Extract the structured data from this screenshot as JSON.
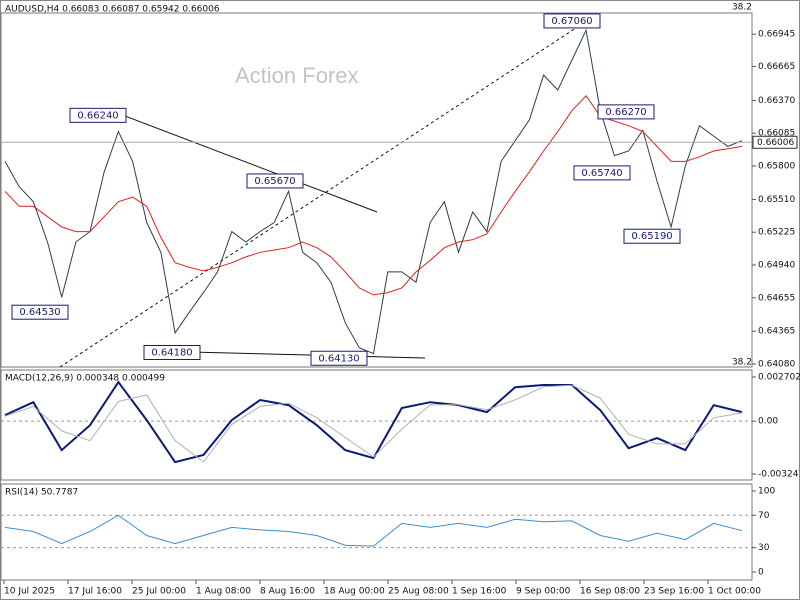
{
  "chart_data": [
    {
      "type": "line",
      "title": "AUDUSD,H4  0.66083 0.66087 0.65942 0.66006",
      "watermark": "Action Forex",
      "series": [
        {
          "color": "#2a3f4f",
          "values": [
            0.6584,
            0.6562,
            0.6549,
            0.6514,
            0.6466,
            0.6514,
            0.6523,
            0.6575,
            0.661,
            0.6584,
            0.6531,
            0.6505,
            0.6435,
            0.6453,
            0.647,
            0.6488,
            0.6523,
            0.6514,
            0.6523,
            0.6531,
            0.6558,
            0.6505,
            0.6496,
            0.6479,
            0.6444,
            0.6422,
            0.6417,
            0.6488,
            0.6488,
            0.6479,
            0.6531,
            0.6549,
            0.6505,
            0.654,
            0.6523,
            0.6584,
            0.6602,
            0.662,
            0.6659,
            0.6646,
            0.6672,
            0.6698,
            0.6628,
            0.6589,
            0.6593,
            0.6611,
            0.6567,
            0.6527,
            0.658,
            0.6615,
            0.6606,
            0.6597,
            0.6602
          ]
        },
        {
          "color": "#e02020",
          "values": [
            0.6558,
            0.6545,
            0.6545,
            0.6536,
            0.6527,
            0.6523,
            0.6523,
            0.6536,
            0.6549,
            0.6553,
            0.6545,
            0.6518,
            0.6496,
            0.6492,
            0.6489,
            0.6492,
            0.6496,
            0.6501,
            0.6505,
            0.6507,
            0.6509,
            0.6514,
            0.6509,
            0.6501,
            0.6488,
            0.6474,
            0.6468,
            0.647,
            0.6474,
            0.6488,
            0.6498,
            0.6509,
            0.6514,
            0.6516,
            0.6521,
            0.654,
            0.6558,
            0.6575,
            0.6593,
            0.661,
            0.6628,
            0.6641,
            0.6623,
            0.6619,
            0.6615,
            0.661,
            0.6597,
            0.6584,
            0.6584,
            0.6588,
            0.6593,
            0.6595,
            0.6597
          ]
        }
      ],
      "ylim": [
        0.64054,
        0.67129
      ],
      "yticks": [
        0.66945,
        0.66665,
        {
          "value": 0.6637,
          "label": "0.66370"
        },
        0.66085,
        {
          "value": 0.658,
          "label": "0.65800"
        },
        {
          "value": 0.6551,
          "label": "0.65510"
        },
        0.65225,
        {
          "value": 0.6494,
          "label": "0.64940"
        },
        0.64655,
        0.64365,
        {
          "value": 0.6408,
          "label": "0.64080"
        }
      ],
      "last_price": 0.66006,
      "annotations": [
        {
          "value": 0.6624,
          "label": "0.66240"
        },
        {
          "value": 0.6453,
          "label": "0.64530"
        },
        {
          "value": 0.6418,
          "label": "0.64180"
        },
        {
          "value": 0.6567,
          "label": "0.65670"
        },
        {
          "value": 0.6413,
          "label": "0.64130"
        },
        {
          "value": 0.6706,
          "label": "0.67060"
        },
        {
          "value": 0.6627,
          "label": "0.66270"
        },
        {
          "value": 0.6574,
          "label": "0.65740"
        },
        {
          "value": 0.6519,
          "label": "0.65190"
        }
      ],
      "fib_labels": [
        38.2,
        38.2
      ],
      "x_tick_labels": [
        "10 Jul 2025",
        "17 Jul 16:00",
        "25 Jul 00:00",
        "1 Aug 08:00",
        "8 Aug 16:00",
        "18 Aug 00:00",
        "25 Aug 08:00",
        "1 Sep 16:00",
        "9 Sep 00:00",
        "16 Sep 08:00",
        "23 Sep 16:00",
        "1 Oct 00:00"
      ]
    },
    {
      "type": "line",
      "title": "MACD(12,26,9) 0.000348 0.000499",
      "series": [
        {
          "color": "#0a1a7a",
          "values": [
            0.00037,
            0.00116,
            -0.00178,
            -0.00025,
            0.00239,
            6e-05,
            -0.00251,
            -0.00208,
            6e-05,
            0.00129,
            0.00098,
            -0.00025,
            -0.00178,
            -0.00227,
            0.0008,
            0.00116,
            0.00098,
            0.00055,
            0.00208,
            0.00221,
            0.00221,
            0.00067,
            -0.00166,
            -0.00104,
            -0.00178,
            0.00098,
            0.00055
          ]
        },
        {
          "color": "#b0b0b0",
          "values": [
            0.0003,
            0.0009,
            -0.0006,
            -0.0012,
            0.0012,
            0.0016,
            -0.0012,
            -0.0025,
            -0.0002,
            0.0009,
            0.0011,
            0.0002,
            -0.001,
            -0.0022,
            -0.0005,
            0.001,
            0.001,
            0.0007,
            0.0013,
            0.0021,
            0.0022,
            0.0014,
            -0.0008,
            -0.0014,
            -0.0014,
            0.0002,
            0.0005
          ]
        }
      ],
      "ylim": [
        -0.003609,
        0.003131
      ],
      "yticks": [
        0.002702,
        {
          "value": 0,
          "label": "0.00"
        },
        -0.003241
      ]
    },
    {
      "type": "line",
      "title": "RSI(14) 50.7787",
      "series": [
        {
          "color": "#3a8fd0",
          "values": [
            55,
            50,
            35,
            50,
            70,
            45,
            35,
            45,
            55,
            52,
            50,
            45,
            33,
            32,
            60,
            55,
            60,
            55,
            65,
            62,
            63,
            45,
            38,
            48,
            40,
            60,
            51
          ]
        }
      ],
      "ylim": [
        -9.9,
        108.6
      ],
      "yticks": [
        100,
        70,
        30,
        0
      ]
    }
  ]
}
